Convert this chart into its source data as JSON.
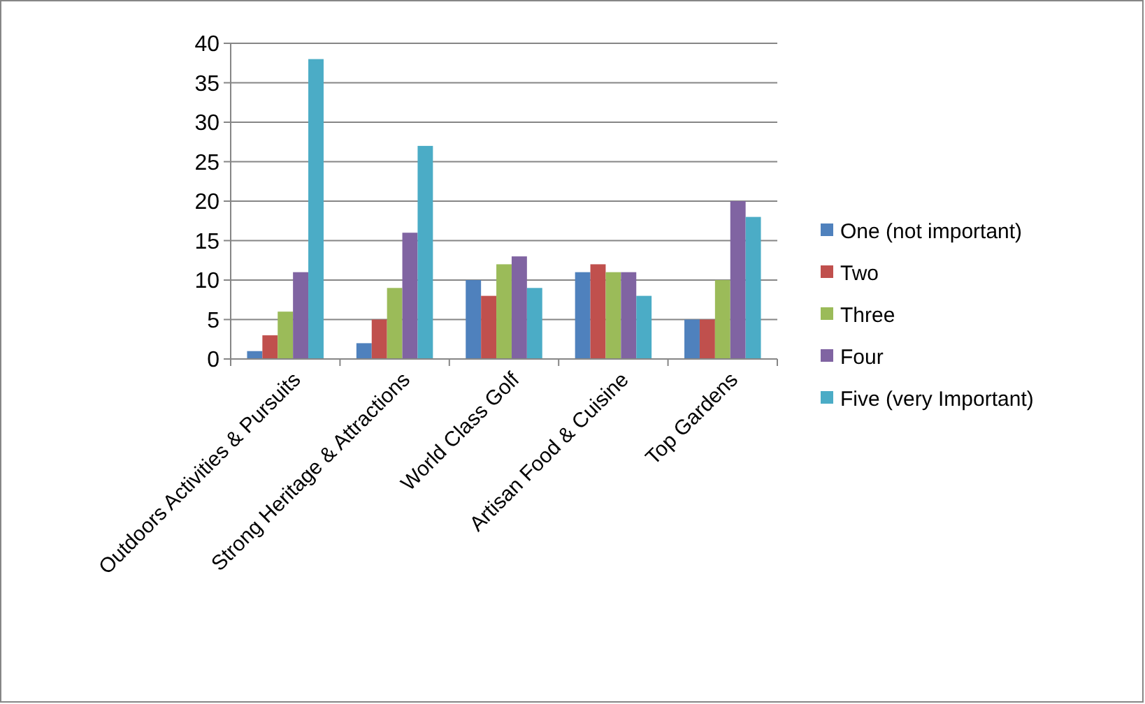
{
  "chart_data": {
    "type": "bar",
    "categories": [
      "Outdoors Activities & Pursuits",
      "Strong Heritage & Attractions",
      "World Class Golf",
      "Artisan Food & Cuisine",
      "Top Gardens"
    ],
    "series": [
      {
        "name": "One (not important)",
        "color": "#4f81bd",
        "values": [
          1,
          2,
          10,
          11,
          5
        ]
      },
      {
        "name": "Two",
        "color": "#c0504d",
        "values": [
          3,
          5,
          8,
          12,
          5
        ]
      },
      {
        "name": "Three",
        "color": "#9bbb59",
        "values": [
          6,
          9,
          12,
          11,
          10
        ]
      },
      {
        "name": "Four",
        "color": "#8064a2",
        "values": [
          11,
          16,
          13,
          11,
          20
        ]
      },
      {
        "name": "Five (very Important)",
        "color": "#4bacc6",
        "values": [
          38,
          27,
          9,
          8,
          18
        ]
      }
    ],
    "ylim": [
      0,
      40
    ],
    "yticks": [
      0,
      5,
      10,
      15,
      20,
      25,
      30,
      35,
      40
    ],
    "grid": "y",
    "legend": "right"
  }
}
